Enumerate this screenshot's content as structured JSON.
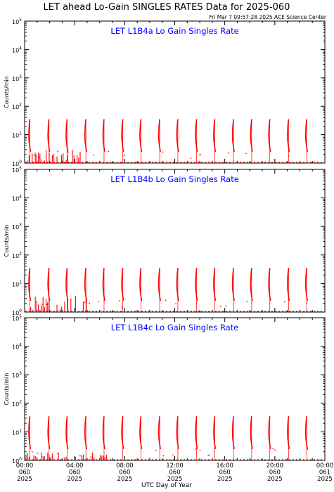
{
  "figure": {
    "title": "LET ahead Lo-Gain SINGLES RATES Data for 2025-060",
    "timestamp": "Fri Mar  7 09:57:28 2025 ACE Science Center",
    "xlabel": "UTC Day of Year",
    "ylabel": "Counts/min"
  },
  "colors": {
    "data": "#ff0000",
    "panel_title": "#0000ff",
    "axes": "#000000",
    "background": "#ffffff"
  },
  "chart_data": [
    {
      "type": "line",
      "title": "LET L1B4a Lo Gain Singles Rate",
      "xlabel": "UTC Day of Year",
      "ylabel": "Counts/min",
      "yscale": "log",
      "ylim": [
        1,
        100000
      ],
      "xlim_hours": [
        0,
        24
      ],
      "spike_hours": [
        0.42,
        1.95,
        3.4,
        4.9,
        6.35,
        7.85,
        9.3,
        10.8,
        12.25,
        13.75,
        15.2,
        16.7,
        18.15,
        19.6,
        21.1,
        22.55
      ],
      "spike_peak": 35,
      "noise_until_hours": 4.9,
      "noise_max": 3
    },
    {
      "type": "line",
      "title": "LET L1B4b Lo Gain Singles Rate",
      "xlabel": "UTC Day of Year",
      "ylabel": "Counts/min",
      "yscale": "log",
      "ylim": [
        1,
        100000
      ],
      "xlim_hours": [
        0,
        24
      ],
      "spike_hours": [
        0.42,
        1.95,
        3.4,
        4.9,
        6.35,
        7.85,
        9.3,
        10.8,
        12.25,
        13.75,
        15.2,
        16.7,
        18.15,
        19.6,
        21.1,
        22.55
      ],
      "spike_peak": 35,
      "noise_until_hours": 5.0,
      "noise_max": 4
    },
    {
      "type": "line",
      "title": "LET L1B4c Lo Gain Singles Rate",
      "xlabel": "UTC Day of Year",
      "ylabel": "Counts/min",
      "yscale": "log",
      "ylim": [
        1,
        100000
      ],
      "xlim_hours": [
        0,
        24
      ],
      "spike_hours": [
        0.42,
        1.95,
        3.4,
        4.9,
        6.35,
        7.85,
        9.3,
        10.8,
        12.25,
        13.75,
        15.2,
        16.7,
        18.15,
        19.6,
        21.1,
        22.55
      ],
      "spike_peak": 35,
      "noise_until_hours": 6.6,
      "noise_max": 2
    }
  ],
  "yticks": [
    {
      "base": "10",
      "exp": "0"
    },
    {
      "base": "10",
      "exp": "1"
    },
    {
      "base": "10",
      "exp": "2"
    },
    {
      "base": "10",
      "exp": "3"
    },
    {
      "base": "10",
      "exp": "4"
    },
    {
      "base": "10",
      "exp": "5"
    }
  ],
  "xticks": [
    {
      "time": "00:00",
      "doy": "060",
      "year": "2025"
    },
    {
      "time": "04:00",
      "doy": "060",
      "year": "2025"
    },
    {
      "time": "08:00",
      "doy": "060",
      "year": "2025"
    },
    {
      "time": "12:00",
      "doy": "060",
      "year": "2025"
    },
    {
      "time": "16:00",
      "doy": "060",
      "year": "2025"
    },
    {
      "time": "20:00",
      "doy": "060",
      "year": "2025"
    },
    {
      "time": "00:00",
      "doy": "061",
      "year": "2025"
    }
  ]
}
